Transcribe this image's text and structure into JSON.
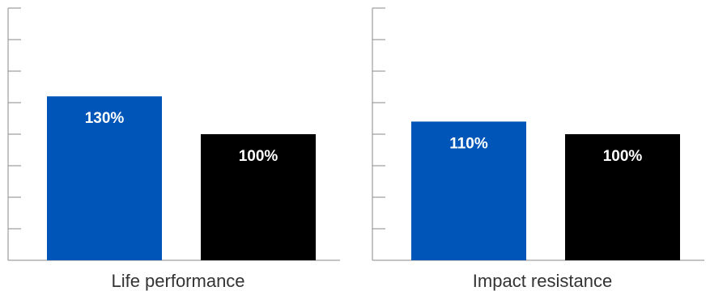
{
  "colors": {
    "primary": "#0056b8",
    "reference": "#000000",
    "axis": "#8a8a8a",
    "label_text": "#ffffff",
    "category_text": "#333333"
  },
  "chart_data": [
    {
      "type": "bar",
      "categories": [
        "Life performance"
      ],
      "series": [
        {
          "values": [
            130
          ],
          "labels": [
            "130%"
          ],
          "color": "#0056b8"
        },
        {
          "values": [
            100
          ],
          "labels": [
            "100%"
          ],
          "color": "#000000"
        }
      ],
      "ylim": [
        0,
        200
      ],
      "grid": false,
      "legend": "none"
    },
    {
      "type": "bar",
      "categories": [
        "Impact resistance"
      ],
      "series": [
        {
          "values": [
            110
          ],
          "labels": [
            "110%"
          ],
          "color": "#0056b8"
        },
        {
          "values": [
            100
          ],
          "labels": [
            "100%"
          ],
          "color": "#000000"
        }
      ],
      "ylim": [
        0,
        200
      ],
      "grid": false,
      "legend": "none"
    }
  ]
}
